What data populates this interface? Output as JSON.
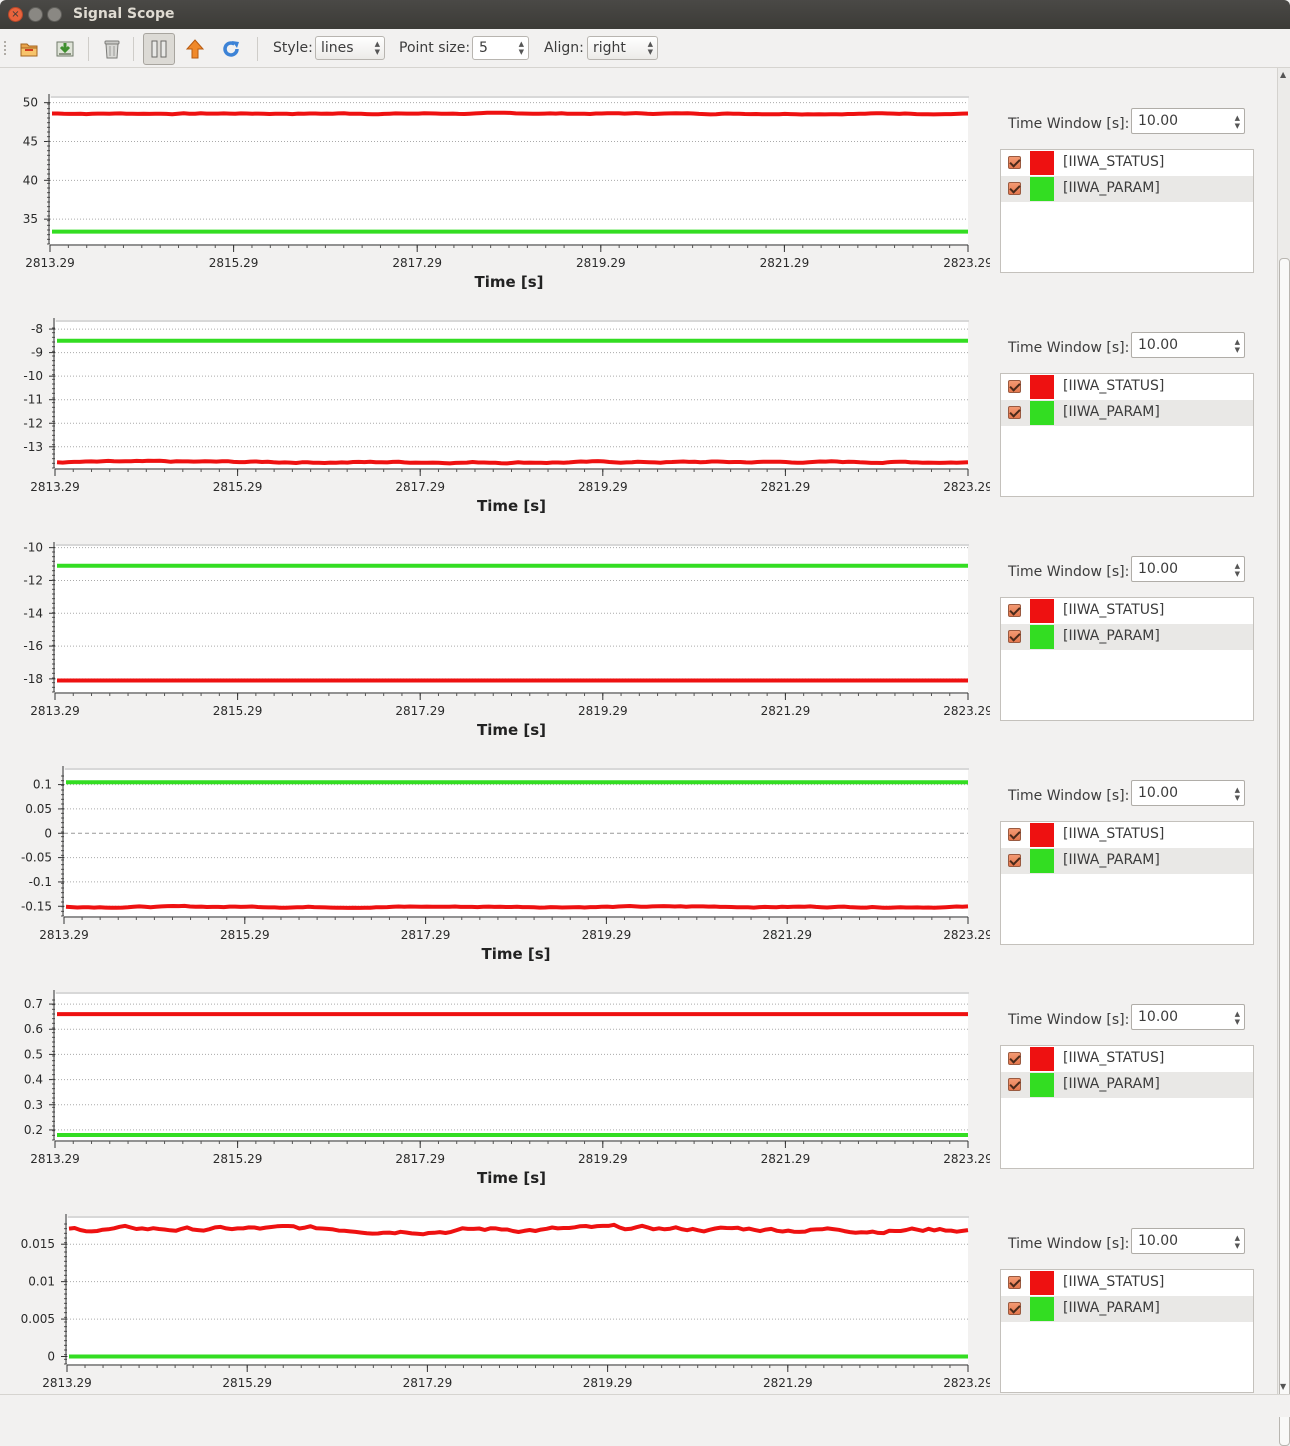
{
  "window": {
    "title": "Signal Scope"
  },
  "toolbar": {
    "icons": [
      "open-folder-icon",
      "save-icon",
      "trash-icon",
      "pause-icon",
      "arrow-up-icon",
      "refresh-icon"
    ],
    "style_label": "Style:",
    "style_value": "lines",
    "pointsize_label": "Point size:",
    "pointsize_value": "5",
    "align_label": "Align:",
    "align_value": "right"
  },
  "colors": {
    "red": "#ee1111",
    "green": "#33dd22"
  },
  "plots": [
    {
      "time_window_label": "Time Window [s]:",
      "time_window_value": "10.00",
      "legend": [
        {
          "name": "[IIWA_STATUS]",
          "color": "#ee1111"
        },
        {
          "name": "[IIWA_PARAM]",
          "color": "#33dd22"
        }
      ],
      "chart_data": {
        "type": "line",
        "xlabel": "Time [s]",
        "xlim": [
          2813.29,
          2823.29
        ],
        "x_ticks": [
          "2813.29",
          "2815.29",
          "2817.29",
          "2819.29",
          "2821.29",
          "2823.29"
        ],
        "y_ticks": [
          "50",
          "45",
          "40",
          "35"
        ],
        "ylim": [
          31.8,
          50.6
        ],
        "zero_line": false,
        "series": [
          {
            "name": "[IIWA_STATUS]",
            "value": 48.6,
            "noise": 0.08
          },
          {
            "name": "[IIWA_PARAM]",
            "value": 33.4,
            "noise": 0
          }
        ]
      }
    },
    {
      "time_window_label": "Time Window [s]:",
      "time_window_value": "10.00",
      "legend": [
        {
          "name": "[IIWA_STATUS]",
          "color": "#ee1111"
        },
        {
          "name": "[IIWA_PARAM]",
          "color": "#33dd22"
        }
      ],
      "chart_data": {
        "type": "line",
        "xlabel": "Time [s]",
        "xlim": [
          2813.29,
          2823.29
        ],
        "x_ticks": [
          "2813.29",
          "2815.29",
          "2817.29",
          "2819.29",
          "2821.29",
          "2823.29"
        ],
        "y_ticks": [
          "-8",
          "-9",
          "-10",
          "-11",
          "-12",
          "-13"
        ],
        "ylim": [
          -13.9,
          -7.7
        ],
        "zero_line": false,
        "series": [
          {
            "name": "[IIWA_STATUS]",
            "value": -13.65,
            "noise": 0.04
          },
          {
            "name": "[IIWA_PARAM]",
            "value": -8.5,
            "noise": 0
          }
        ]
      }
    },
    {
      "time_window_label": "Time Window [s]:",
      "time_window_value": "10.00",
      "legend": [
        {
          "name": "[IIWA_STATUS]",
          "color": "#ee1111"
        },
        {
          "name": "[IIWA_PARAM]",
          "color": "#33dd22"
        }
      ],
      "chart_data": {
        "type": "line",
        "xlabel": "Time [s]",
        "xlim": [
          2813.29,
          2823.29
        ],
        "x_ticks": [
          "2813.29",
          "2815.29",
          "2817.29",
          "2819.29",
          "2821.29",
          "2823.29"
        ],
        "y_ticks": [
          "-10",
          "-12",
          "-14",
          "-16",
          "-18"
        ],
        "ylim": [
          -18.8,
          -9.9
        ],
        "zero_line": false,
        "series": [
          {
            "name": "[IIWA_STATUS]",
            "value": -18.1,
            "noise": 0
          },
          {
            "name": "[IIWA_PARAM]",
            "value": -11.1,
            "noise": 0
          }
        ]
      }
    },
    {
      "time_window_label": "Time Window [s]:",
      "time_window_value": "10.00",
      "legend": [
        {
          "name": "[IIWA_STATUS]",
          "color": "#ee1111"
        },
        {
          "name": "[IIWA_PARAM]",
          "color": "#33dd22"
        }
      ],
      "chart_data": {
        "type": "line",
        "xlabel": "Time [s]",
        "xlim": [
          2813.29,
          2823.29
        ],
        "x_ticks": [
          "2813.29",
          "2815.29",
          "2817.29",
          "2819.29",
          "2821.29",
          "2823.29"
        ],
        "y_ticks": [
          "0.1",
          "0.05",
          "0",
          "-0.05",
          "-0.1",
          "-0.15"
        ],
        "ylim": [
          -0.17,
          0.13
        ],
        "zero_line": true,
        "series": [
          {
            "name": "[IIWA_STATUS]",
            "value": -0.151,
            "noise": 0.0015
          },
          {
            "name": "[IIWA_PARAM]",
            "value": 0.105,
            "noise": 0
          }
        ]
      }
    },
    {
      "time_window_label": "Time Window [s]:",
      "time_window_value": "10.00",
      "legend": [
        {
          "name": "[IIWA_STATUS]",
          "color": "#ee1111"
        },
        {
          "name": "[IIWA_PARAM]",
          "color": "#33dd22"
        }
      ],
      "chart_data": {
        "type": "line",
        "xlabel": "Time [s]",
        "xlim": [
          2813.29,
          2823.29
        ],
        "x_ticks": [
          "2813.29",
          "2815.29",
          "2817.29",
          "2819.29",
          "2821.29",
          "2823.29"
        ],
        "y_ticks": [
          "0.7",
          "0.6",
          "0.5",
          "0.4",
          "0.3",
          "0.2"
        ],
        "ylim": [
          0.16,
          0.74
        ],
        "zero_line": false,
        "series": [
          {
            "name": "[IIWA_STATUS]",
            "value": 0.66,
            "noise": 0
          },
          {
            "name": "[IIWA_PARAM]",
            "value": 0.18,
            "noise": 0
          }
        ]
      }
    },
    {
      "time_window_label": "Time Window [s]:",
      "time_window_value": "10.00",
      "legend": [
        {
          "name": "[IIWA_STATUS]",
          "color": "#ee1111"
        },
        {
          "name": "[IIWA_PARAM]",
          "color": "#33dd22"
        }
      ],
      "chart_data": {
        "type": "line",
        "xlabel": "Time [s]",
        "xlim": [
          2813.29,
          2823.29
        ],
        "x_ticks": [
          "2813.29",
          "2815.29",
          "2817.29",
          "2819.29",
          "2821.29",
          "2823.29"
        ],
        "y_ticks": [
          "0.015",
          "0.01",
          "0.005",
          "0"
        ],
        "ylim": [
          -0.001,
          0.0185
        ],
        "zero_line": false,
        "series": [
          {
            "name": "[IIWA_STATUS]",
            "value": 0.017,
            "noise": 0.0004
          },
          {
            "name": "[IIWA_PARAM]",
            "value": 0.0,
            "noise": 0
          }
        ]
      }
    }
  ]
}
